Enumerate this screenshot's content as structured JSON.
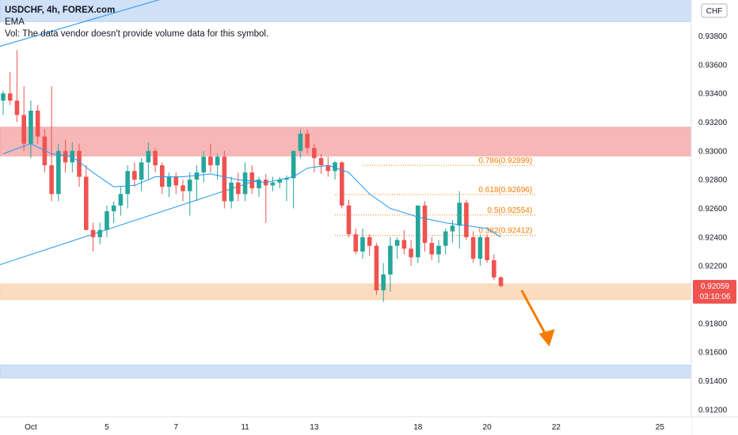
{
  "legend": {
    "symbol": "USDCHF, 4h, FOREX.com",
    "indicator": "EMA",
    "volume_note": "Vol: The data vendor doesn't provide volume data for this symbol."
  },
  "currency_label": "CHF",
  "current_price": {
    "value": "0.92059",
    "countdown": "03:10:06"
  },
  "colors": {
    "up": "#26a69a",
    "down": "#ef5350",
    "ema": "#2196f3",
    "trendline": "#2196f3",
    "resistance_zone": "#f7b7b7",
    "support_zone": "#fbdcc0",
    "blue_zone": "#cfe0f7",
    "fib": "#f57c00",
    "arrow": "#f57c00",
    "price_badge": "#ef5350"
  },
  "chart_data": {
    "type": "candlestick",
    "y_axis": {
      "min": 0.9115,
      "max": 0.9405,
      "ticks": [
        "0.93800",
        "0.93600",
        "0.93400",
        "0.93200",
        "0.93000",
        "0.92800",
        "0.92600",
        "0.92400",
        "0.92200",
        "0.91800",
        "0.91600",
        "0.91400",
        "0.91200"
      ]
    },
    "x_axis": {
      "labels": [
        {
          "label": "Oct",
          "bar": 4
        },
        {
          "label": "5",
          "bar": 15
        },
        {
          "label": "7",
          "bar": 25
        },
        {
          "label": "11",
          "bar": 35
        },
        {
          "label": "13",
          "bar": 45
        },
        {
          "label": "18",
          "bar": 60
        },
        {
          "label": "20",
          "bar": 70
        },
        {
          "label": "22",
          "bar": 80
        },
        {
          "label": "25",
          "bar": 95
        }
      ]
    },
    "candles": [
      [
        0.9335,
        0.9342,
        0.9325,
        0.934
      ],
      [
        0.934,
        0.9355,
        0.9332,
        0.9335
      ],
      [
        0.9335,
        0.937,
        0.932,
        0.9325
      ],
      [
        0.9325,
        0.9345,
        0.93,
        0.9305
      ],
      [
        0.9305,
        0.9335,
        0.9295,
        0.9328
      ],
      [
        0.9328,
        0.9332,
        0.9305,
        0.931
      ],
      [
        0.931,
        0.9315,
        0.9285,
        0.929
      ],
      [
        0.929,
        0.9345,
        0.9265,
        0.927
      ],
      [
        0.927,
        0.9305,
        0.9265,
        0.93
      ],
      [
        0.93,
        0.9308,
        0.9285,
        0.9292
      ],
      [
        0.9292,
        0.9306,
        0.9285,
        0.93
      ],
      [
        0.93,
        0.9305,
        0.9275,
        0.9282
      ],
      [
        0.9282,
        0.929,
        0.9245,
        0.9245
      ],
      [
        0.9245,
        0.925,
        0.923,
        0.924
      ],
      [
        0.924,
        0.925,
        0.9235,
        0.9245
      ],
      [
        0.9245,
        0.9262,
        0.924,
        0.9258
      ],
      [
        0.9258,
        0.9265,
        0.925,
        0.9262
      ],
      [
        0.9262,
        0.9275,
        0.9255,
        0.927
      ],
      [
        0.927,
        0.929,
        0.926,
        0.9286
      ],
      [
        0.9286,
        0.9292,
        0.9275,
        0.928
      ],
      [
        0.928,
        0.9295,
        0.9272,
        0.9292
      ],
      [
        0.9292,
        0.9306,
        0.928,
        0.93
      ],
      [
        0.93,
        0.9302,
        0.9285,
        0.929
      ],
      [
        0.929,
        0.9292,
        0.927,
        0.9275
      ],
      [
        0.9275,
        0.9285,
        0.9268,
        0.9282
      ],
      [
        0.9282,
        0.9285,
        0.927,
        0.9276
      ],
      [
        0.9276,
        0.928,
        0.9265,
        0.9272
      ],
      [
        0.9272,
        0.9285,
        0.9255,
        0.928
      ],
      [
        0.928,
        0.929,
        0.9265,
        0.9285
      ],
      [
        0.9285,
        0.93,
        0.9278,
        0.9296
      ],
      [
        0.9296,
        0.9305,
        0.9285,
        0.929
      ],
      [
        0.929,
        0.9298,
        0.928,
        0.9296
      ],
      [
        0.9296,
        0.93,
        0.926,
        0.9265
      ],
      [
        0.9265,
        0.9282,
        0.926,
        0.9278
      ],
      [
        0.9278,
        0.9285,
        0.9265,
        0.927
      ],
      [
        0.927,
        0.9292,
        0.9265,
        0.9285
      ],
      [
        0.9285,
        0.929,
        0.927,
        0.9274
      ],
      [
        0.9274,
        0.9282,
        0.9268,
        0.928
      ],
      [
        0.928,
        0.9284,
        0.925,
        0.9276
      ],
      [
        0.9276,
        0.9282,
        0.9272,
        0.9278
      ],
      [
        0.9278,
        0.9282,
        0.9274,
        0.928
      ],
      [
        0.928,
        0.9283,
        0.9265,
        0.9281
      ],
      [
        0.9281,
        0.93,
        0.926,
        0.93
      ],
      [
        0.93,
        0.9315,
        0.9295,
        0.9312
      ],
      [
        0.9312,
        0.9315,
        0.9298,
        0.9302
      ],
      [
        0.9302,
        0.9305,
        0.9285,
        0.9295
      ],
      [
        0.9295,
        0.9298,
        0.9284,
        0.929
      ],
      [
        0.929,
        0.9296,
        0.9282,
        0.9286
      ],
      [
        0.9286,
        0.9293,
        0.928,
        0.9292
      ],
      [
        0.9292,
        0.9293,
        0.926,
        0.9262
      ],
      [
        0.9262,
        0.9266,
        0.924,
        0.9242
      ],
      [
        0.9242,
        0.9246,
        0.9228,
        0.923
      ],
      [
        0.923,
        0.9246,
        0.9225,
        0.924
      ],
      [
        0.924,
        0.9242,
        0.9227,
        0.9234
      ],
      [
        0.9234,
        0.9236,
        0.92,
        0.9203
      ],
      [
        0.9203,
        0.9222,
        0.9195,
        0.9214
      ],
      [
        0.9214,
        0.924,
        0.9202,
        0.9234
      ],
      [
        0.9234,
        0.924,
        0.9225,
        0.9238
      ],
      [
        0.9238,
        0.9245,
        0.9228,
        0.9232
      ],
      [
        0.9232,
        0.9238,
        0.922,
        0.9226
      ],
      [
        0.9226,
        0.9262,
        0.9222,
        0.9262
      ],
      [
        0.9262,
        0.9265,
        0.923,
        0.9236
      ],
      [
        0.9236,
        0.924,
        0.9224,
        0.9228
      ],
      [
        0.9228,
        0.9238,
        0.9222,
        0.9234
      ],
      [
        0.9234,
        0.9246,
        0.9228,
        0.9244
      ],
      [
        0.9244,
        0.9252,
        0.9236,
        0.9248
      ],
      [
        0.9248,
        0.9272,
        0.9232,
        0.9264
      ],
      [
        0.9264,
        0.9266,
        0.9238,
        0.924
      ],
      [
        0.924,
        0.9244,
        0.9222,
        0.9225
      ],
      [
        0.9225,
        0.9242,
        0.922,
        0.924
      ],
      [
        0.924,
        0.9242,
        0.9222,
        0.9224
      ],
      [
        0.9224,
        0.9228,
        0.921,
        0.9212
      ],
      [
        0.9212,
        0.9213,
        0.9205,
        0.9206
      ]
    ],
    "ema": [
      [
        0,
        0.9298
      ],
      [
        4,
        0.9305
      ],
      [
        7,
        0.9298
      ],
      [
        10,
        0.9296
      ],
      [
        13,
        0.9285
      ],
      [
        16,
        0.9275
      ],
      [
        19,
        0.9276
      ],
      [
        22,
        0.9282
      ],
      [
        26,
        0.9282
      ],
      [
        30,
        0.9284
      ],
      [
        34,
        0.928
      ],
      [
        38,
        0.9278
      ],
      [
        42,
        0.9282
      ],
      [
        44,
        0.9288
      ],
      [
        47,
        0.929
      ],
      [
        50,
        0.9285
      ],
      [
        53,
        0.927
      ],
      [
        56,
        0.926
      ],
      [
        60,
        0.9254
      ],
      [
        64,
        0.925
      ],
      [
        67,
        0.9248
      ],
      [
        70,
        0.9246
      ],
      [
        72,
        0.924
      ]
    ],
    "zones": [
      {
        "kind": "blue",
        "from": 0.939,
        "to": 0.9415
      },
      {
        "kind": "resistance",
        "from": 0.92965,
        "to": 0.93165
      },
      {
        "kind": "support",
        "from": 0.91965,
        "to": 0.92075
      },
      {
        "kind": "blue",
        "from": 0.9142,
        "to": 0.9151
      }
    ],
    "trendlines": [
      {
        "from": [
          -1,
          0.922
        ],
        "to": [
          37,
          0.928
        ]
      },
      {
        "from": [
          -1,
          0.9372
        ],
        "to": [
          26,
          0.941
        ]
      }
    ],
    "fibonacci": [
      {
        "label": "0.786(0.92899)",
        "price": 0.92899,
        "from_bar": 52,
        "to_bar": 77
      },
      {
        "label": "0.618(0.92696)",
        "price": 0.92696,
        "from_bar": 48,
        "to_bar": 77
      },
      {
        "label": "0.5(0.92554)",
        "price": 0.92554,
        "from_bar": 48,
        "to_bar": 77
      },
      {
        "label": "0.382(0.92412)",
        "price": 0.92412,
        "from_bar": 48,
        "to_bar": 77
      }
    ],
    "arrow": {
      "from": [
        75,
        0.9203
      ],
      "to": [
        79,
        0.9164
      ]
    }
  }
}
